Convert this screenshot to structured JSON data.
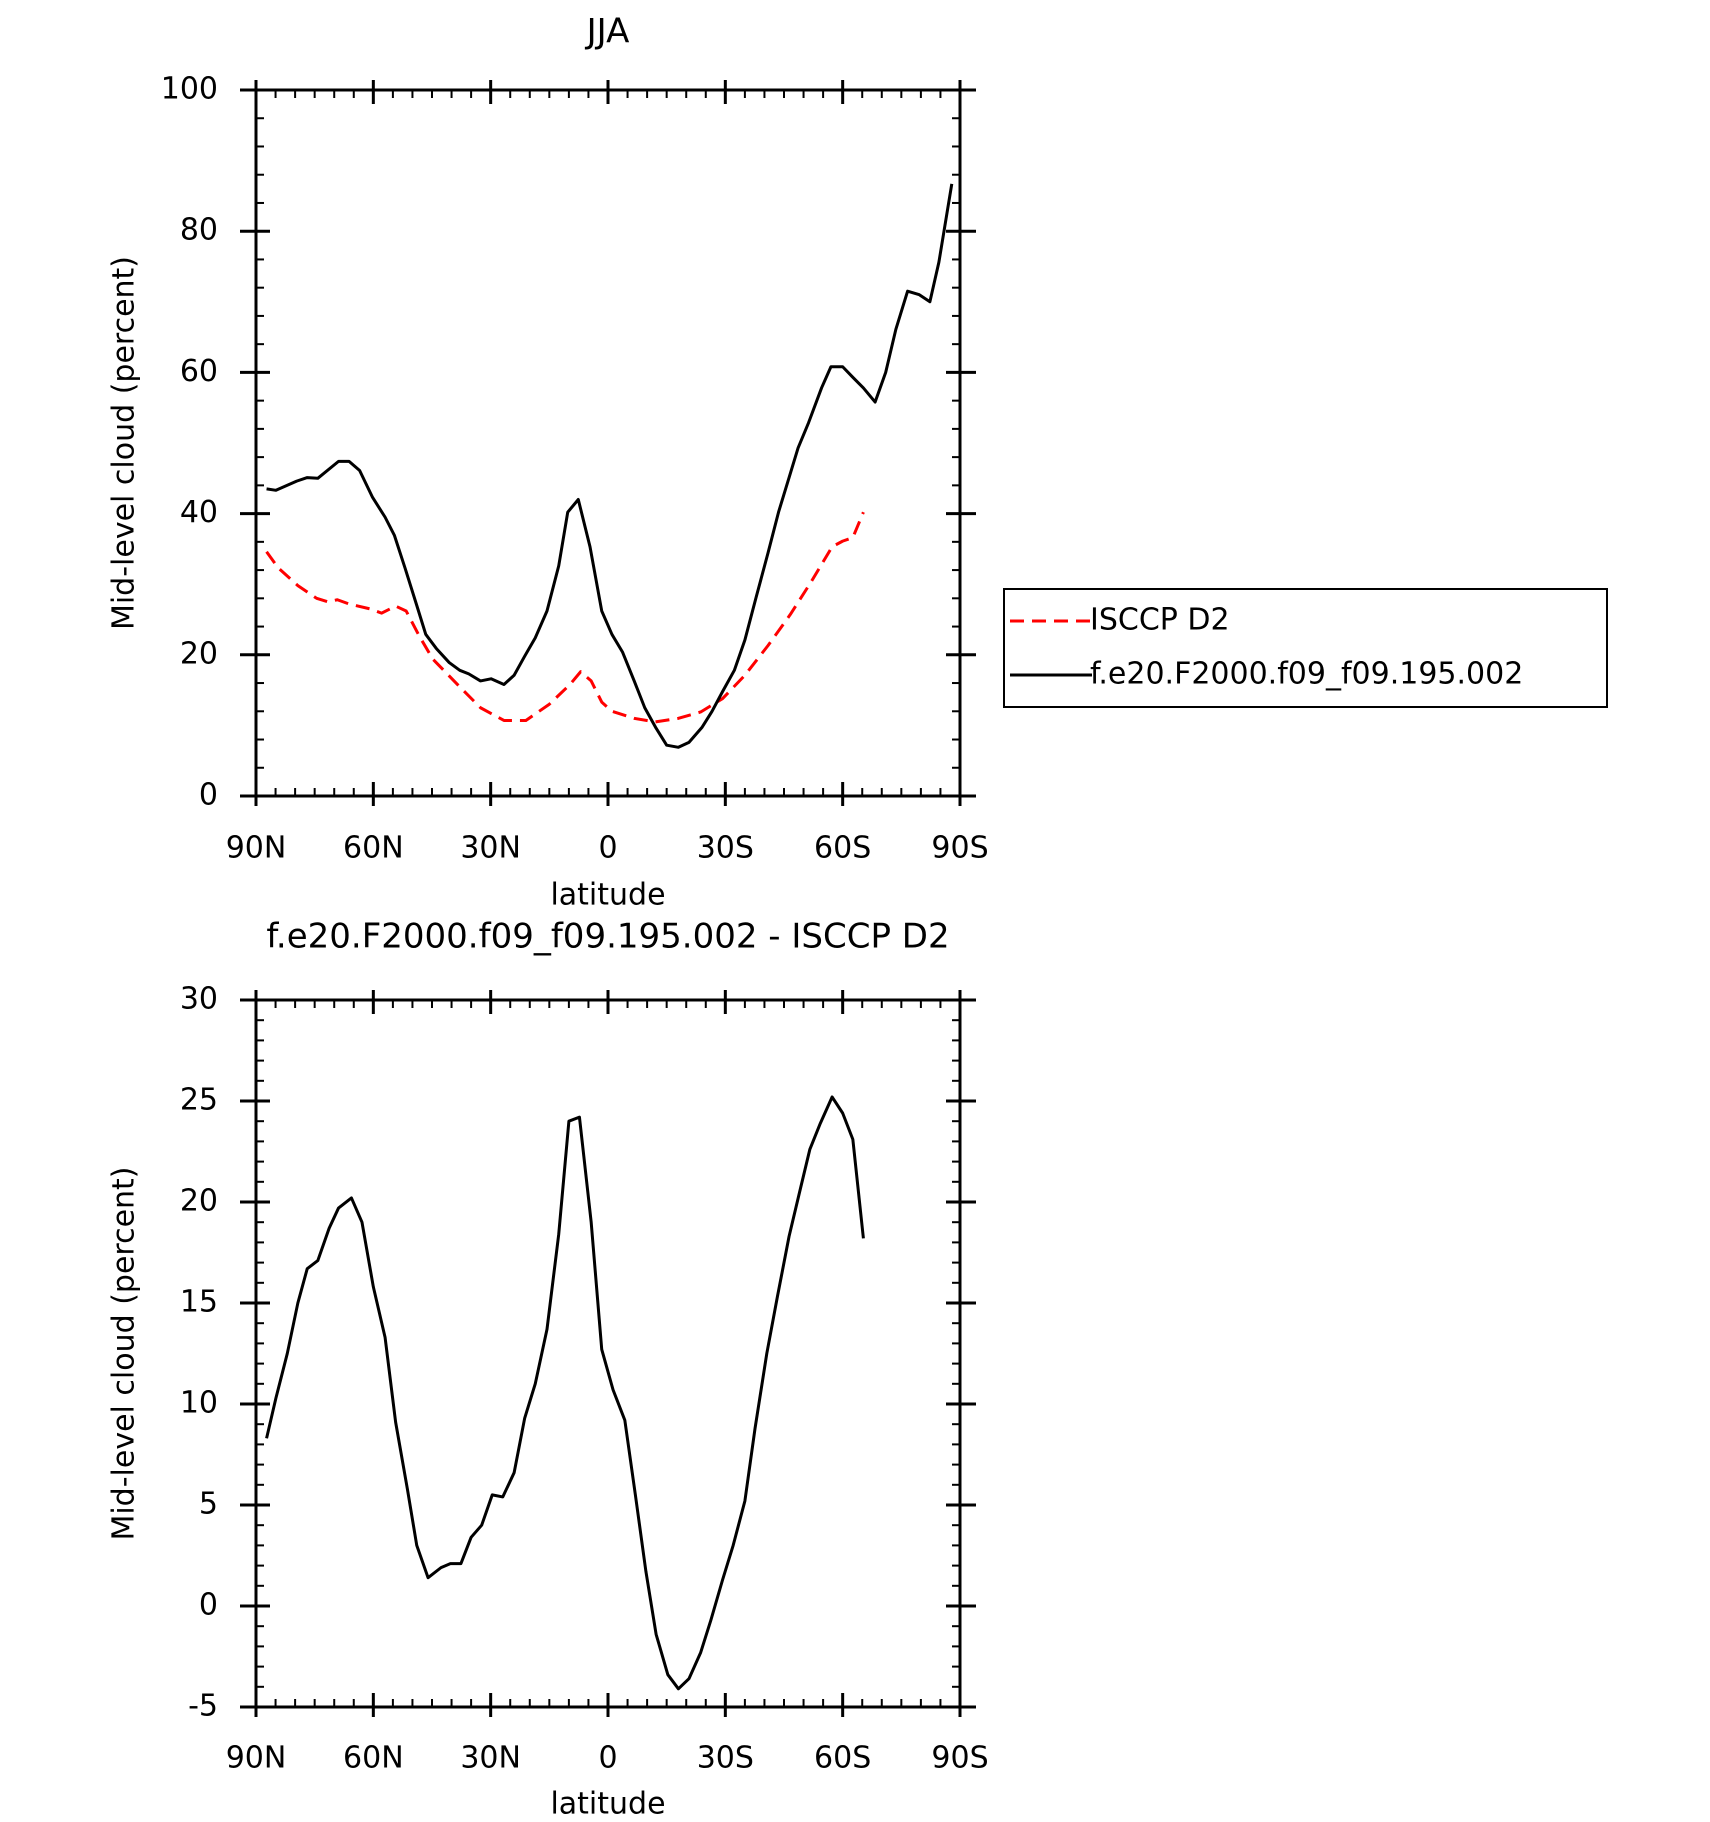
{
  "chart_data": [
    {
      "type": "line",
      "title": "JJA",
      "xlabel": "latitude",
      "ylabel": "Mid-level cloud (percent)",
      "xlim": [
        90,
        -90
      ],
      "xticks": [
        {
          "value": 90,
          "label": "90N"
        },
        {
          "value": 60,
          "label": "60N"
        },
        {
          "value": 30,
          "label": "30N"
        },
        0,
        {
          "value": -30,
          "label": "30S"
        },
        {
          "value": -60,
          "label": "60S"
        },
        {
          "value": -90,
          "label": "90S"
        }
      ],
      "ylim": [
        0,
        100
      ],
      "yticks": [
        0,
        20,
        40,
        60,
        80,
        100
      ],
      "legend": "right",
      "series": [
        {
          "name": "ISCCP D2",
          "color": "#ff0000",
          "dashed": true,
          "x": [
            87.3,
            84.3,
            79.3,
            74.5,
            71.6,
            69.2,
            66.2,
            60.8,
            57.9,
            54.3,
            51.6,
            48.3,
            44.8,
            38.5,
            32.6,
            26.6,
            21.0,
            15.0,
            9.7,
            7.0,
            4.3,
            1.6,
            -1.0,
            -6.7,
            -12.1,
            -18.0,
            -23.7,
            -29.3,
            -35.0,
            -40.9,
            -46.6,
            -51.9,
            -57.3,
            -60.0,
            -62.6,
            -65.3
          ],
          "values": [
            34.6,
            32.3,
            29.8,
            28.0,
            27.5,
            27.8,
            27.2,
            26.5,
            25.9,
            26.9,
            26.2,
            22.7,
            19.4,
            15.8,
            12.5,
            10.7,
            10.7,
            13.0,
            15.8,
            17.6,
            16.3,
            13.3,
            12.0,
            11.0,
            10.5,
            11.0,
            11.9,
            13.8,
            17.1,
            21.3,
            25.7,
            30.3,
            35.3,
            36.1,
            36.6,
            40.2
          ]
        },
        {
          "name": "f.e20.F2000.f09_f09.195.002",
          "color": "#000000",
          "dashed": false,
          "x": [
            87.3,
            84.9,
            79.6,
            76.9,
            74.2,
            68.9,
            66.2,
            63.5,
            60.2,
            57.0,
            54.6,
            51.9,
            48.9,
            46.6,
            43.9,
            40.6,
            37.9,
            35.6,
            32.6,
            29.9,
            26.6,
            24.0,
            21.3,
            18.6,
            15.6,
            12.6,
            10.3,
            7.6,
            4.6,
            1.6,
            -1.0,
            -3.7,
            -6.7,
            -9.4,
            -12.3,
            -15.0,
            -18.0,
            -20.7,
            -24.0,
            -26.6,
            -29.3,
            -32.3,
            -35.0,
            -37.9,
            -40.9,
            -43.6,
            -46.3,
            -48.6,
            -51.3,
            -54.6,
            -57.0,
            -60.0,
            -62.6,
            -65.3,
            -68.3,
            -71.0,
            -73.6,
            -76.6,
            -79.6,
            -82.3,
            -84.6,
            -87.9
          ],
          "values": [
            43.5,
            43.3,
            44.6,
            45.1,
            45.0,
            47.4,
            47.4,
            46.1,
            42.3,
            39.5,
            36.9,
            32.3,
            27.0,
            22.9,
            20.9,
            18.9,
            17.8,
            17.3,
            16.3,
            16.6,
            15.8,
            17.1,
            19.8,
            22.4,
            26.2,
            32.6,
            40.2,
            42.0,
            35.3,
            26.2,
            22.9,
            20.4,
            16.3,
            12.5,
            9.6,
            7.2,
            6.9,
            7.6,
            9.7,
            12.0,
            14.8,
            17.8,
            22.1,
            28.2,
            34.4,
            40.2,
            45.1,
            49.3,
            52.9,
            57.8,
            60.8,
            60.8,
            59.3,
            57.8,
            55.8,
            60.0,
            66.1,
            71.5,
            71.0,
            70.0,
            75.6,
            86.7
          ]
        }
      ]
    },
    {
      "type": "line",
      "title": "f.e20.F2000.f09_f09.195.002 - ISCCP D2",
      "xlabel": "latitude",
      "ylabel": "Mid-level cloud (percent)",
      "xlim": [
        90,
        -90
      ],
      "xticks": [
        {
          "value": 90,
          "label": "90N"
        },
        {
          "value": 60,
          "label": "60N"
        },
        {
          "value": 30,
          "label": "30N"
        },
        0,
        {
          "value": -30,
          "label": "30S"
        },
        {
          "value": -60,
          "label": "60S"
        },
        {
          "value": -90,
          "label": "90S"
        }
      ],
      "ylim": [
        -5,
        30
      ],
      "yticks": [
        -5,
        0,
        5,
        10,
        15,
        20,
        25,
        30
      ],
      "series": [
        {
          "color": "#000000",
          "dashed": false,
          "x": [
            87.3,
            84.9,
            82.0,
            79.3,
            76.9,
            74.2,
            71.3,
            68.9,
            65.6,
            62.9,
            60.0,
            57.0,
            54.3,
            51.3,
            48.9,
            46.0,
            42.7,
            40.3,
            37.6,
            35.0,
            32.3,
            29.6,
            26.9,
            24.0,
            21.3,
            18.6,
            15.6,
            12.6,
            10.0,
            7.3,
            4.3,
            1.6,
            -1.3,
            -4.3,
            -7.0,
            -9.7,
            -12.3,
            -15.3,
            -18.0,
            -20.7,
            -23.7,
            -26.3,
            -29.3,
            -32.0,
            -35.0,
            -37.6,
            -40.6,
            -43.3,
            -46.3,
            -49.0,
            -51.6,
            -54.3,
            -57.3,
            -60.0,
            -62.6,
            -65.3
          ],
          "values": [
            8.3,
            10.3,
            12.5,
            15.0,
            16.7,
            17.1,
            18.7,
            19.7,
            20.2,
            19.0,
            15.8,
            13.3,
            9.1,
            5.8,
            3.0,
            1.4,
            1.9,
            2.1,
            2.1,
            3.4,
            4.0,
            5.5,
            5.4,
            6.6,
            9.3,
            11.0,
            13.7,
            18.4,
            24.0,
            24.2,
            19.0,
            12.7,
            10.7,
            9.2,
            5.5,
            1.7,
            -1.4,
            -3.4,
            -4.1,
            -3.6,
            -2.3,
            -0.7,
            1.3,
            3.0,
            5.2,
            8.8,
            12.5,
            15.3,
            18.3,
            20.5,
            22.6,
            23.9,
            25.2,
            24.4,
            23.1,
            18.2
          ]
        }
      ]
    }
  ]
}
